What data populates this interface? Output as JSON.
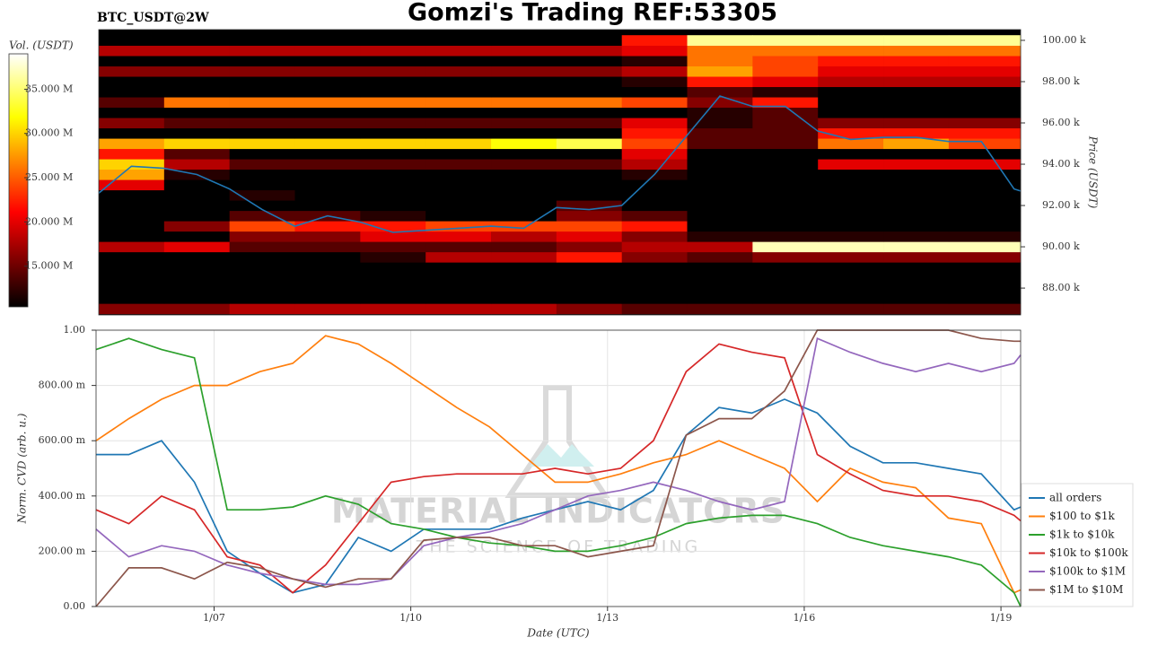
{
  "chart_data": [
    {
      "type": "heatmap",
      "title": "Gomzi's Trading REF:53305",
      "subtitle": "BTC_USDT@2W",
      "y_label": "Price (USDT)",
      "colorbar_label": "Vol. (USDT)",
      "colormap": "hot",
      "xlim": [
        5.2,
        19.3
      ],
      "ylim": [
        86700,
        100520
      ],
      "yticks": [
        {
          "value": 88000,
          "label": "88.00 k"
        },
        {
          "value": 90000,
          "label": "90.00 k"
        },
        {
          "value": 92000,
          "label": "92.00 k"
        },
        {
          "value": 94000,
          "label": "94.00 k"
        },
        {
          "value": 96000,
          "label": "96.00 k"
        },
        {
          "value": 98000,
          "label": "98.00 k"
        },
        {
          "value": 100000,
          "label": "100.00 k"
        }
      ],
      "clim": [
        10.4,
        39
      ],
      "cticks": [
        {
          "value": 15,
          "label": "15.000 M"
        },
        {
          "value": 20,
          "label": "20.000 M"
        },
        {
          "value": 25,
          "label": "25.000 M"
        },
        {
          "value": 30,
          "label": "30.000 M"
        },
        {
          "value": 35,
          "label": "35.000 M"
        }
      ],
      "xbins": [
        5.2,
        6.2,
        7.2,
        8.2,
        9.2,
        10.2,
        11.2,
        12.2,
        13.2,
        14.2,
        15.2,
        16.2,
        17.2,
        18.2,
        19.3
      ],
      "ybins": [
        86750,
        87250,
        87750,
        88250,
        88750,
        89250,
        89750,
        90250,
        90750,
        91250,
        91750,
        92250,
        92750,
        93250,
        93750,
        94250,
        94750,
        95250,
        95750,
        96250,
        96750,
        97250,
        97750,
        98250,
        98750,
        99250,
        99750,
        100250
      ],
      "z": [
        [
          16,
          16,
          18,
          18,
          18,
          18,
          18,
          16,
          14,
          14,
          14,
          14,
          14,
          14
        ],
        [
          10,
          10,
          10,
          10,
          10,
          10,
          10,
          10,
          10,
          10,
          10,
          10,
          10,
          10
        ],
        [
          8,
          8,
          8,
          8,
          8,
          8,
          8,
          8,
          8,
          8,
          8,
          8,
          8,
          8
        ],
        [
          10,
          10,
          10,
          10,
          10,
          10,
          10,
          10,
          8,
          8,
          8,
          8,
          8,
          8
        ],
        [
          8,
          8,
          8,
          8,
          8,
          8,
          8,
          8,
          8,
          8,
          8,
          8,
          8,
          8
        ],
        [
          10,
          10,
          10,
          10,
          12,
          18,
          18,
          22,
          16,
          14,
          16,
          16,
          16,
          16
        ],
        [
          18,
          20,
          14,
          14,
          14,
          14,
          14,
          16,
          18,
          18,
          37,
          37,
          37,
          37
        ],
        [
          8,
          10,
          16,
          16,
          20,
          20,
          18,
          20,
          16,
          12,
          12,
          12,
          12,
          12
        ],
        [
          8,
          16,
          24,
          22,
          22,
          24,
          24,
          24,
          22,
          10,
          10,
          10,
          10,
          10
        ],
        [
          8,
          8,
          14,
          14,
          12,
          10,
          10,
          16,
          14,
          8,
          8,
          8,
          8,
          8
        ],
        [
          8,
          8,
          10,
          10,
          10,
          10,
          10,
          14,
          10,
          8,
          8,
          8,
          8,
          8
        ],
        [
          10,
          10,
          12,
          10,
          10,
          10,
          10,
          10,
          8,
          8,
          8,
          8,
          8,
          8
        ],
        [
          20,
          10,
          10,
          10,
          10,
          10,
          10,
          10,
          8,
          8,
          8,
          8,
          8,
          8
        ],
        [
          28,
          12,
          10,
          10,
          10,
          10,
          10,
          10,
          12,
          8,
          8,
          8,
          8,
          8
        ],
        [
          30,
          18,
          14,
          14,
          14,
          14,
          14,
          14,
          18,
          10,
          10,
          20,
          20,
          20
        ],
        [
          22,
          14,
          10,
          10,
          10,
          10,
          10,
          10,
          20,
          8,
          8,
          10,
          10,
          10
        ],
        [
          28,
          30,
          30,
          30,
          30,
          30,
          32,
          34,
          24,
          14,
          14,
          26,
          28,
          24
        ],
        [
          10,
          10,
          10,
          10,
          10,
          10,
          10,
          10,
          22,
          14,
          14,
          22,
          22,
          22
        ],
        [
          16,
          14,
          14,
          14,
          14,
          14,
          14,
          14,
          20,
          12,
          14,
          16,
          16,
          16
        ],
        [
          8,
          8,
          8,
          8,
          8,
          8,
          8,
          8,
          8,
          12,
          14,
          8,
          8,
          8
        ],
        [
          14,
          26,
          26,
          26,
          26,
          26,
          26,
          26,
          24,
          16,
          22,
          8,
          8,
          8
        ],
        [
          8,
          8,
          8,
          8,
          8,
          8,
          8,
          8,
          8,
          14,
          12,
          8,
          8,
          8
        ],
        [
          10,
          10,
          10,
          10,
          10,
          10,
          10,
          10,
          12,
          22,
          20,
          18,
          18,
          18
        ],
        [
          16,
          16,
          16,
          16,
          16,
          16,
          16,
          16,
          18,
          28,
          24,
          20,
          20,
          20
        ],
        [
          10,
          10,
          10,
          10,
          10,
          10,
          10,
          10,
          12,
          26,
          24,
          22,
          22,
          22
        ],
        [
          18,
          18,
          18,
          18,
          18,
          18,
          18,
          18,
          20,
          26,
          26,
          26,
          26,
          26
        ],
        [
          8,
          8,
          8,
          8,
          8,
          8,
          8,
          8,
          22,
          36,
          36,
          36,
          36,
          36
        ]
      ],
      "price": {
        "color": "#1f77b4",
        "x": [
          5.2,
          5.7,
          6.2,
          6.7,
          7.2,
          7.7,
          8.2,
          8.7,
          9.2,
          9.7,
          10.2,
          10.7,
          11.2,
          11.7,
          12.2,
          12.7,
          13.2,
          13.7,
          14.2,
          14.7,
          15.2,
          15.7,
          16.2,
          16.7,
          17.2,
          17.7,
          18.2,
          18.7,
          19.2,
          19.3
        ],
        "values": [
          92600,
          93900,
          93800,
          93500,
          92800,
          91800,
          91000,
          91500,
          91200,
          90700,
          90800,
          90900,
          91000,
          90900,
          91900,
          91800,
          92000,
          93500,
          95400,
          97300,
          96800,
          96800,
          95600,
          95200,
          95300,
          95300,
          95100,
          95100,
          92800,
          92700
        ]
      }
    },
    {
      "type": "line",
      "x_label": "Date (UTC)",
      "y_label": "Norm. CVD (arb. u.)",
      "watermark": [
        "MATERIAL INDICATORS",
        "THE SCIENCE OF TRADING"
      ],
      "grid": true,
      "legend": "lower right",
      "xlim": [
        5.2,
        19.3
      ],
      "xticks": [
        {
          "value": 7,
          "label": "1/07"
        },
        {
          "value": 10,
          "label": "1/10"
        },
        {
          "value": 13,
          "label": "1/13"
        },
        {
          "value": 16,
          "label": "1/16"
        },
        {
          "value": 19,
          "label": "1/19"
        }
      ],
      "ylim": [
        0,
        1
      ],
      "yticks": [
        {
          "value": 0,
          "label": "0.00"
        },
        {
          "value": 0.2,
          "label": "200.00 m"
        },
        {
          "value": 0.4,
          "label": "400.00 m"
        },
        {
          "value": 0.6,
          "label": "600.00 m"
        },
        {
          "value": 0.8,
          "label": "800.00 m"
        },
        {
          "value": 1,
          "label": "1.00"
        }
      ],
      "x": [
        5.2,
        5.7,
        6.2,
        6.7,
        7.2,
        7.7,
        8.2,
        8.7,
        9.2,
        9.7,
        10.2,
        10.7,
        11.2,
        11.7,
        12.2,
        12.7,
        13.2,
        13.7,
        14.2,
        14.7,
        15.2,
        15.7,
        16.2,
        16.7,
        17.2,
        17.7,
        18.2,
        18.7,
        19.2,
        19.3
      ],
      "series": [
        {
          "name": "all orders",
          "color": "#1f77b4",
          "values": [
            0.55,
            0.55,
            0.6,
            0.45,
            0.2,
            0.12,
            0.05,
            0.08,
            0.25,
            0.2,
            0.28,
            0.28,
            0.28,
            0.32,
            0.35,
            0.38,
            0.35,
            0.42,
            0.62,
            0.72,
            0.7,
            0.75,
            0.7,
            0.58,
            0.52,
            0.52,
            0.5,
            0.48,
            0.35,
            0.36
          ]
        },
        {
          "name": "$100 to $1k",
          "color": "#ff7f0e",
          "values": [
            0.6,
            0.68,
            0.75,
            0.8,
            0.8,
            0.85,
            0.88,
            0.98,
            0.95,
            0.88,
            0.8,
            0.72,
            0.65,
            0.55,
            0.45,
            0.45,
            0.48,
            0.52,
            0.55,
            0.6,
            0.55,
            0.5,
            0.38,
            0.5,
            0.45,
            0.43,
            0.32,
            0.3,
            0.05,
            0.06
          ]
        },
        {
          "name": "$1k to $10k",
          "color": "#2ca02c",
          "values": [
            0.93,
            0.97,
            0.93,
            0.9,
            0.35,
            0.35,
            0.36,
            0.4,
            0.37,
            0.3,
            0.28,
            0.25,
            0.23,
            0.22,
            0.2,
            0.2,
            0.22,
            0.25,
            0.3,
            0.32,
            0.33,
            0.33,
            0.3,
            0.25,
            0.22,
            0.2,
            0.18,
            0.15,
            0.05,
            0.0
          ]
        },
        {
          "name": "$10k to $100k",
          "color": "#d62728",
          "values": [
            0.35,
            0.3,
            0.4,
            0.35,
            0.18,
            0.15,
            0.05,
            0.15,
            0.3,
            0.45,
            0.47,
            0.48,
            0.48,
            0.48,
            0.5,
            0.48,
            0.5,
            0.6,
            0.85,
            0.95,
            0.92,
            0.9,
            0.55,
            0.48,
            0.42,
            0.4,
            0.4,
            0.38,
            0.33,
            0.31
          ]
        },
        {
          "name": "$100k to $1M",
          "color": "#9467bd",
          "values": [
            0.28,
            0.18,
            0.22,
            0.2,
            0.15,
            0.12,
            0.1,
            0.08,
            0.08,
            0.1,
            0.22,
            0.25,
            0.27,
            0.3,
            0.35,
            0.4,
            0.42,
            0.45,
            0.42,
            0.38,
            0.35,
            0.38,
            0.97,
            0.92,
            0.88,
            0.85,
            0.88,
            0.85,
            0.88,
            0.91
          ]
        },
        {
          "name": "$1M to $10M",
          "color": "#8c564b",
          "values": [
            0.0,
            0.14,
            0.14,
            0.1,
            0.16,
            0.14,
            0.1,
            0.07,
            0.1,
            0.1,
            0.24,
            0.25,
            0.25,
            0.22,
            0.22,
            0.18,
            0.2,
            0.22,
            0.62,
            0.68,
            0.68,
            0.78,
            1.0,
            1.0,
            1.0,
            1.0,
            1.0,
            0.97,
            0.96,
            0.96
          ]
        }
      ]
    }
  ]
}
